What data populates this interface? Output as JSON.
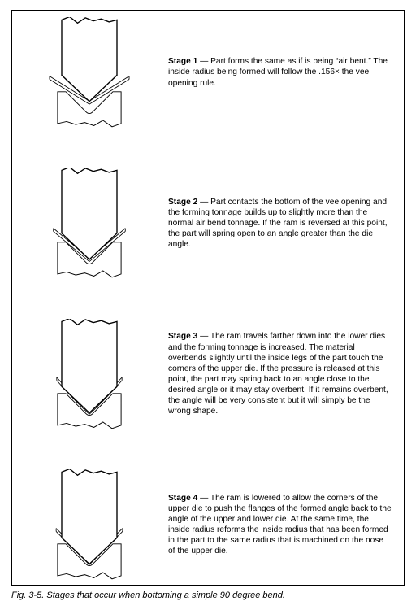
{
  "figure_label": "Fig. 3-5. Stages that occur when bottoming a simple 90 degree bend.",
  "stages": [
    {
      "label": "Stage 1",
      "text": "Part forms the same as if is being “air bent.” The inside radius being formed will follow the .156× the vee opening rule.",
      "diagram_type": "air_bend",
      "sheet_gap_bottom": 12,
      "punch_depth": 30
    },
    {
      "label": "Stage 2",
      "text": "Part contacts the bottom of the vee opening and the forming tonnage builds up to slightly more than the normal air bend tonnage. If the ram is reversed at this point, the part will spring open to an angle greater than the die angle.",
      "diagram_type": "bottom_touch",
      "sheet_gap_bottom": 2,
      "punch_depth": 36
    },
    {
      "label": "Stage 3",
      "text": "The ram travels farther down into the lower dies and the forming tonnage is increased. The material overbends slightly until the inside legs of the part touch the corners of the upper die. If the pressure is released at this point, the part may spring back to an angle close to the desired angle or it may stay overbent. If it remains overbent, the angle will be very consistent but it will simply be the wrong shape.",
      "diagram_type": "overbend",
      "sheet_gap_bottom": 0,
      "punch_depth": 42
    },
    {
      "label": "Stage 4",
      "text": "The ram is lowered to allow the corners of the upper die to push the flanges of the formed angle back to the angle of the upper and lower die. At the same time, the inside radius reforms the inside radius that has been formed in the part to the same radius that is machined on the nose of the upper die.",
      "diagram_type": "coined",
      "sheet_gap_bottom": 0,
      "punch_depth": 46
    }
  ],
  "style": {
    "outline_color": "#000000",
    "fill_color": "#ffffff",
    "outline_width_upper": 1.6,
    "outline_width_lower": 1.1,
    "sheet_width": 1.0
  }
}
